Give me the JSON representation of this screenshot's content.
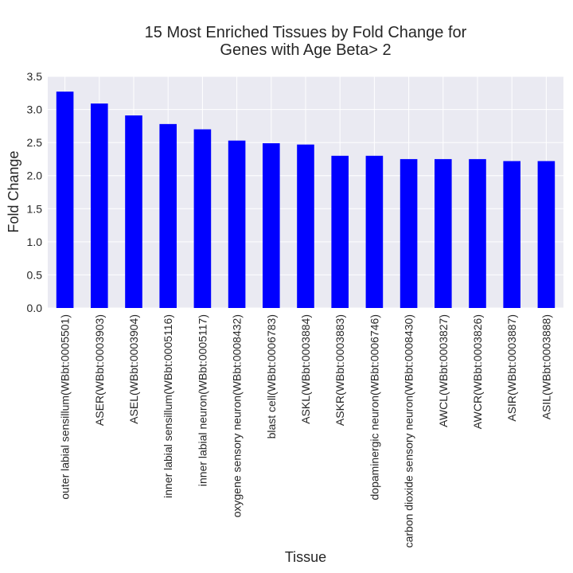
{
  "chart_data": {
    "type": "bar",
    "title_lines": [
      "15 Most Enriched Tissues by Fold Change for",
      "Genes with Age Beta> 2"
    ],
    "xlabel": "Tissue",
    "ylabel": "Fold Change",
    "ylim": [
      0,
      3.5
    ],
    "yticks": [
      "0.0",
      "0.5",
      "1.0",
      "1.5",
      "2.0",
      "2.5",
      "3.0",
      "3.5"
    ],
    "grid": true,
    "bar_color": "#0000ff",
    "background_color": "#eaeaf2",
    "categories": [
      "outer labial sensillum(WBbt:0005501)",
      "ASER(WBbt:0003903)",
      "ASEL(WBbt:0003904)",
      "inner labial sensillum(WBbt:0005116)",
      "inner labial neuron(WBbt:0005117)",
      "oxygene sensory neuron(WBbt:0008432)",
      "blast cell(WBbt:0006783)",
      "ASKL(WBbt:0003884)",
      "ASKR(WBbt:0003883)",
      "dopaminergic neuron(WBbt:0006746)",
      "carbon dioxide sensory neuron(WBbt:0008430)",
      "AWCL(WBbt:0003827)",
      "AWCR(WBbt:0003826)",
      "ASIR(WBbt:0003887)",
      "ASIL(WBbt:0003888)"
    ],
    "values": [
      3.27,
      3.09,
      2.91,
      2.78,
      2.7,
      2.53,
      2.49,
      2.47,
      2.3,
      2.3,
      2.25,
      2.25,
      2.25,
      2.22,
      2.22
    ]
  }
}
